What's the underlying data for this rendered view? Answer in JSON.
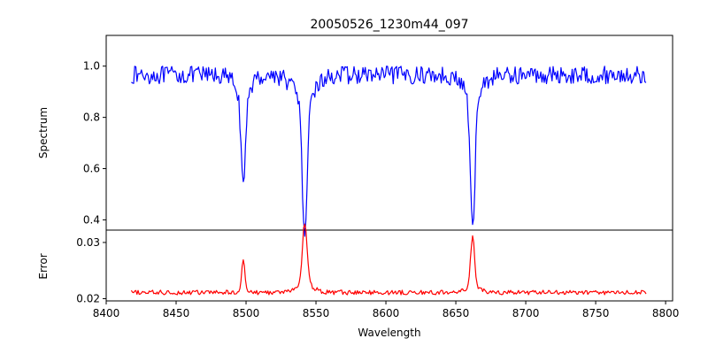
{
  "chart_data": {
    "type": "line",
    "title": "20050526_1230m44_097",
    "xlabel": "Wavelength",
    "xlim": [
      8400,
      8805
    ],
    "xticks": [
      "8400",
      "8450",
      "8500",
      "8550",
      "8600",
      "8650",
      "8700",
      "8750",
      "8800"
    ],
    "panels": [
      {
        "name": "spectrum",
        "ylabel": "Spectrum",
        "ylim": [
          0.36,
          1.12
        ],
        "yticks": [
          "0.4",
          "0.6",
          "0.8",
          "1.0"
        ],
        "series": [
          {
            "color": "#0000ff",
            "baseline": 0.965,
            "noise": 0.035,
            "features": [
              {
                "center": 8498.0,
                "depth": 0.39,
                "width": 1.6
              },
              {
                "center": 8498.0,
                "depth": 0.06,
                "width": 6.0
              },
              {
                "center": 8542.0,
                "depth": 0.57,
                "width": 1.8
              },
              {
                "center": 8542.0,
                "depth": 0.08,
                "width": 8.0
              },
              {
                "center": 8662.0,
                "depth": 0.54,
                "width": 1.7
              },
              {
                "center": 8662.0,
                "depth": 0.07,
                "width": 7.0
              }
            ],
            "x_start": 8418,
            "x_end": 8786,
            "step": 0.8
          }
        ]
      },
      {
        "name": "error",
        "ylabel": "Error",
        "ylim": [
          0.0196,
          0.0322
        ],
        "yticks": [
          "0.02",
          "0.03"
        ],
        "series": [
          {
            "color": "#ff0000",
            "baseline": 0.0211,
            "noise": 0.0004,
            "features": [
              {
                "center": 8498.0,
                "depth": -0.006,
                "width": 1.2
              },
              {
                "center": 8542.0,
                "depth": -0.011,
                "width": 1.6
              },
              {
                "center": 8542.0,
                "depth": -0.0015,
                "width": 6.0
              },
              {
                "center": 8662.0,
                "depth": -0.009,
                "width": 1.4
              },
              {
                "center": 8662.0,
                "depth": -0.001,
                "width": 5.0
              }
            ],
            "x_start": 8418,
            "x_end": 8786,
            "step": 0.8
          }
        ]
      }
    ]
  }
}
